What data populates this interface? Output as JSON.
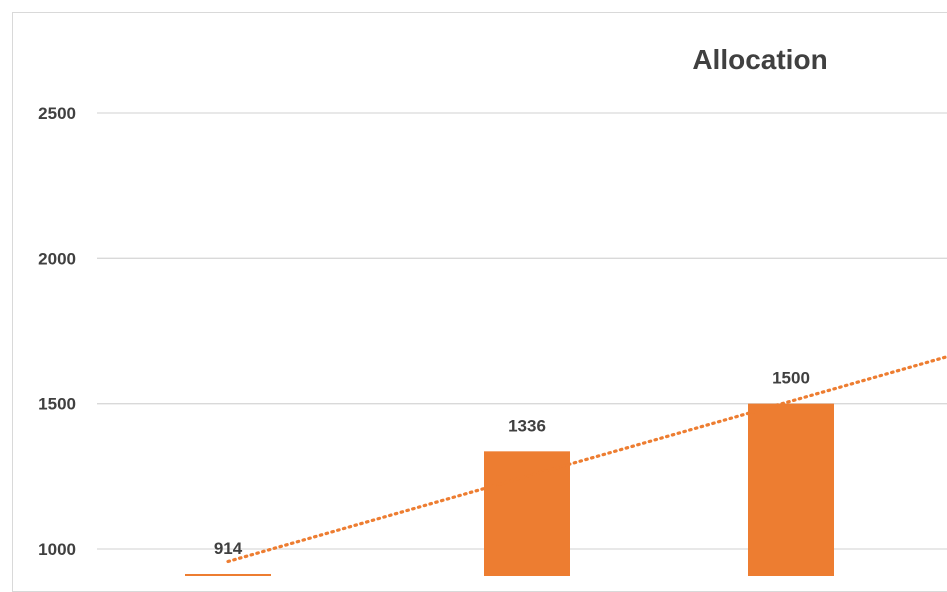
{
  "chart_data": {
    "type": "bar",
    "title": "Allocation",
    "categories": [
      "",
      "",
      ""
    ],
    "series": [
      {
        "values": [
          914,
          1336,
          1500
        ],
        "color": "#ED7D31"
      }
    ],
    "data_labels": [
      "914",
      "1336",
      "1500"
    ],
    "trendline": {
      "type": "linear",
      "style": "dotted",
      "color": "#ED7D31"
    },
    "yticks": [
      1000,
      1500,
      2000,
      2500
    ],
    "ylim": [
      0,
      2700
    ],
    "grid": true,
    "xlabel": "",
    "ylabel": ""
  }
}
